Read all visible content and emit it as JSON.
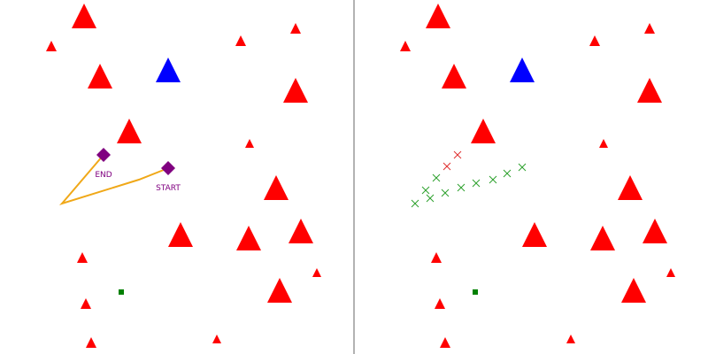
{
  "labels": {
    "start": "START",
    "end": "END"
  },
  "colors": {
    "obstacle": "#ff0000",
    "agent": "#0000ff",
    "goal_marker": "#800080",
    "path": "#f0a818",
    "target": "#008000",
    "trail_good": "#2ca02c",
    "trail_bad": "#e03030",
    "divider": "#666666",
    "background": "#ffffff"
  },
  "icons": {
    "obstacle": "red-triangle-icon",
    "agent": "blue-triangle-icon",
    "waypoint": "purple-diamond-icon",
    "target": "green-square-icon",
    "trail": "x-mark-icon"
  }
}
